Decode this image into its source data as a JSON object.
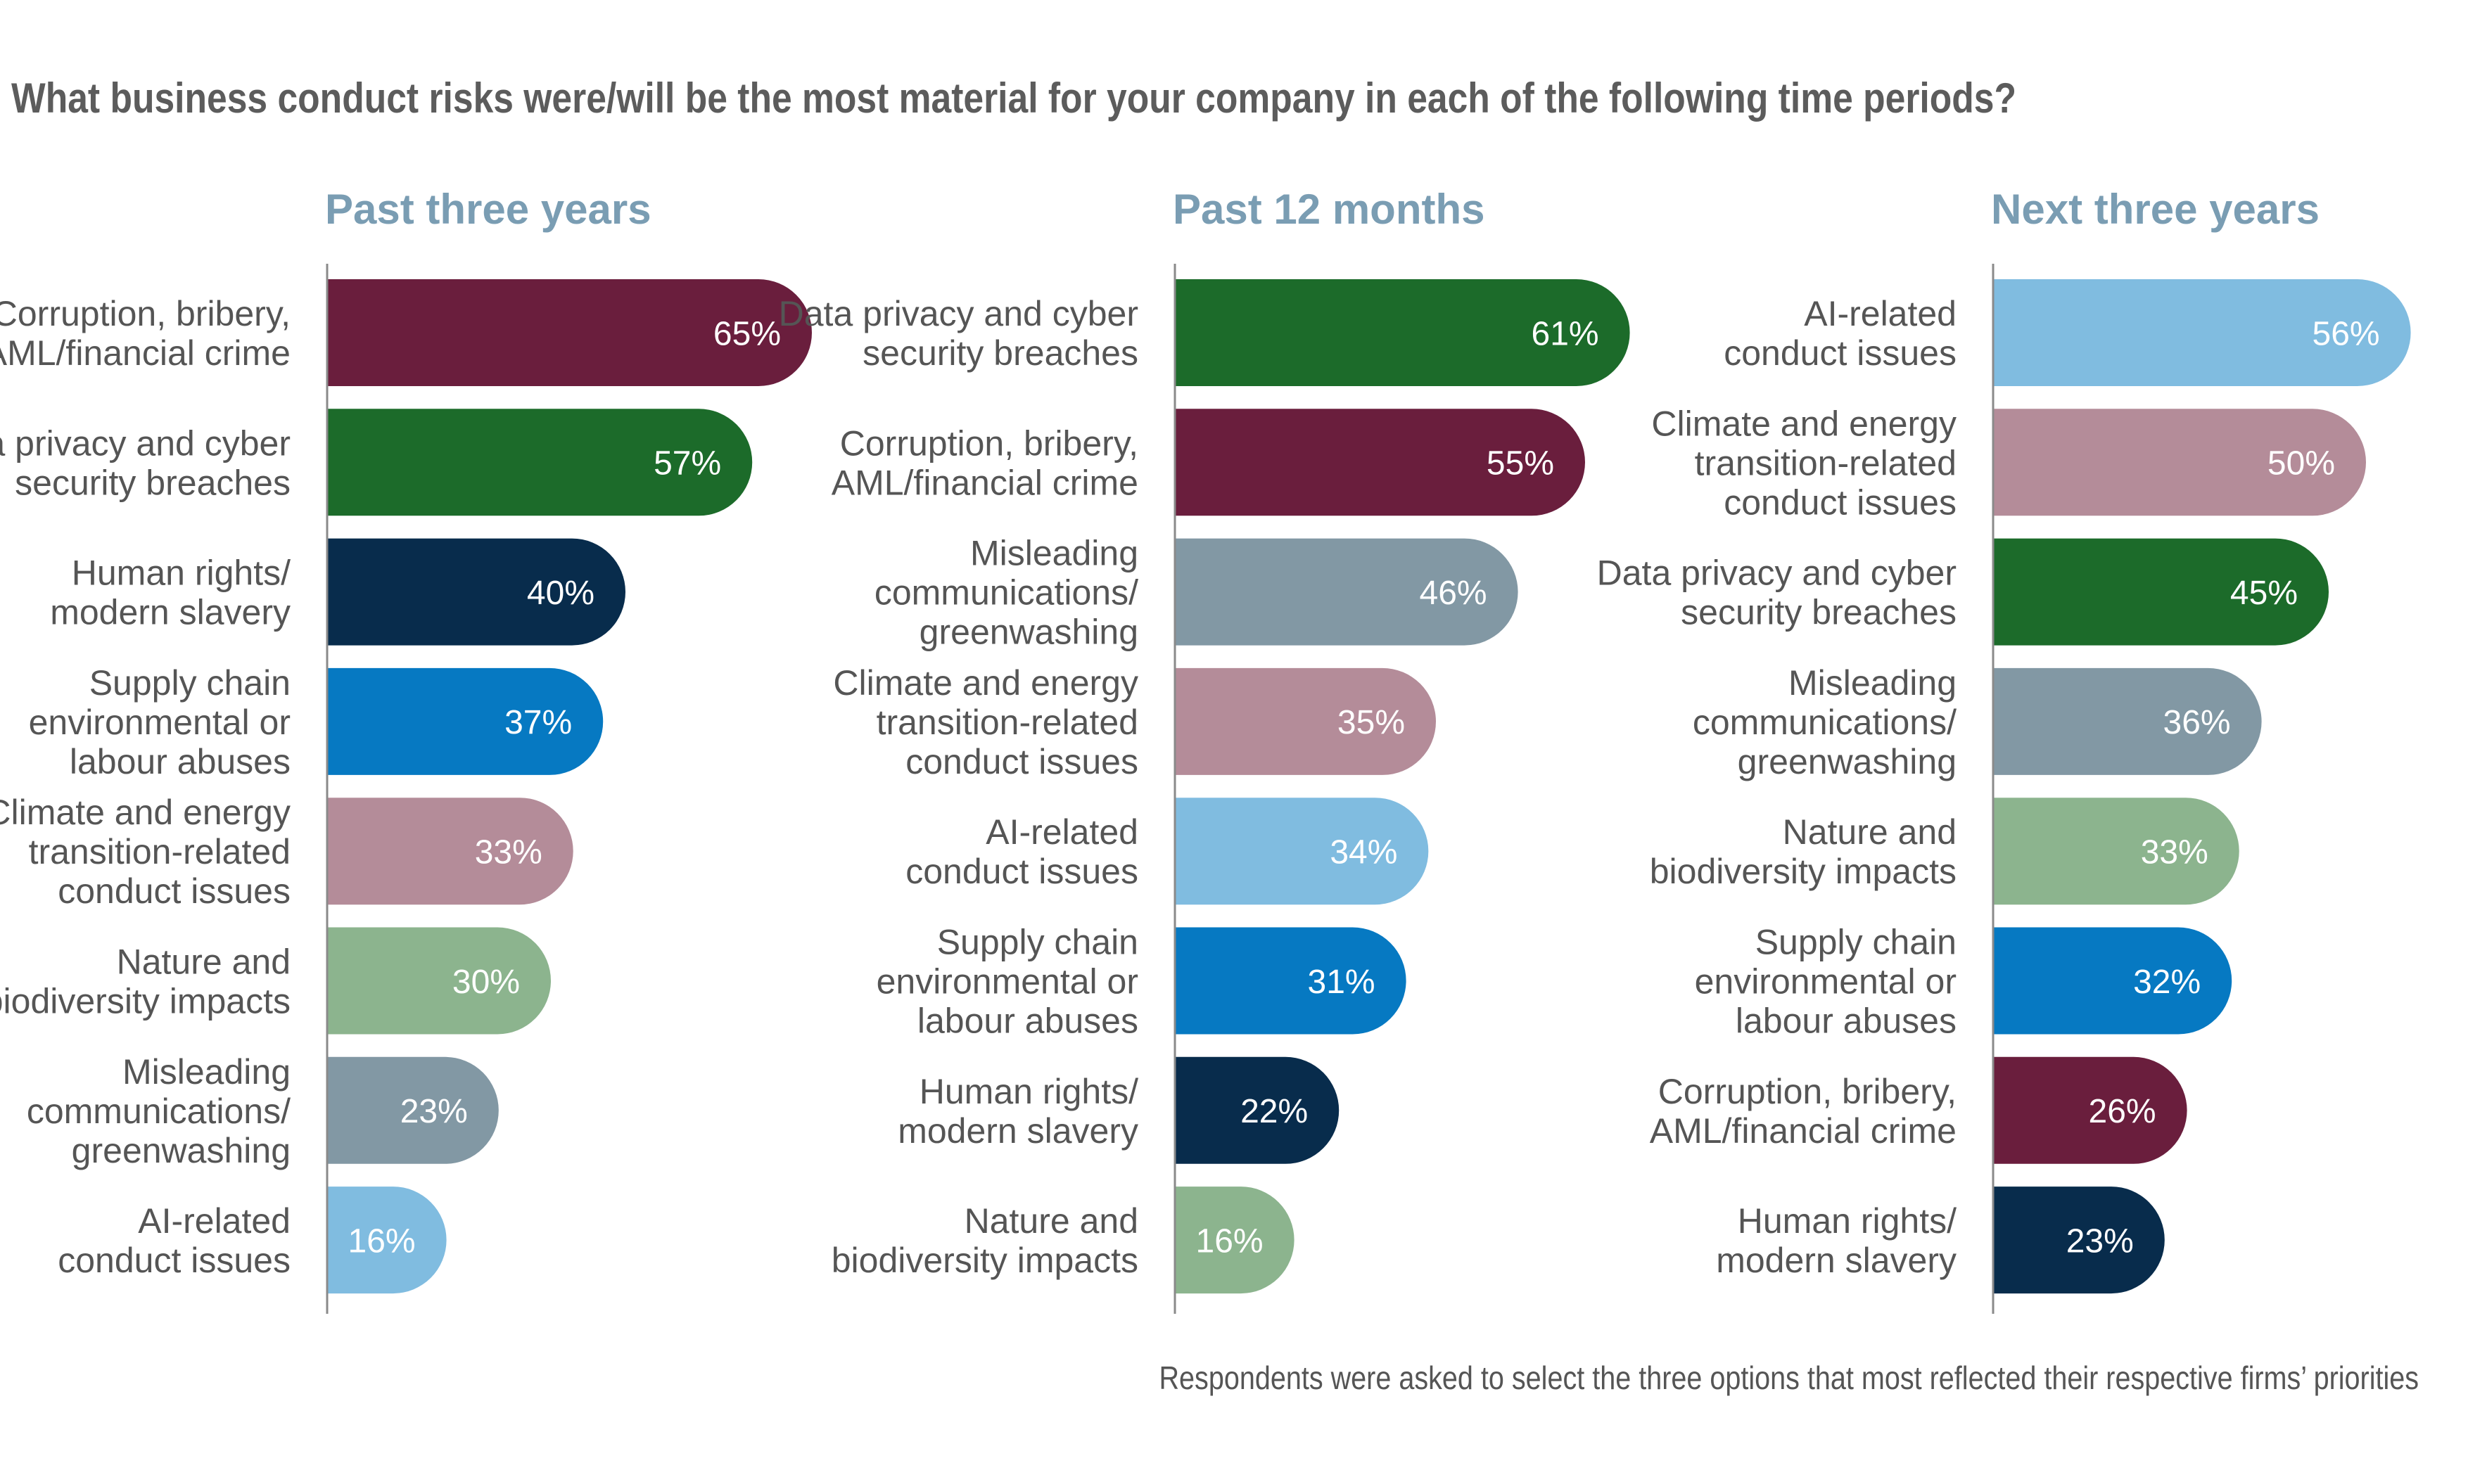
{
  "title": "What business conduct risks were/will be the most material for your company in each of the following time periods?",
  "footnote": "Respondents were asked to select the three options that most reflected their respective firms’ priorities",
  "colors": {
    "Corruption": "#6a1e3d",
    "DataPrivacy": "#1c6b2a",
    "HumanRights": "#082c4c",
    "SupplyChain": "#0679c2",
    "Climate": "#b48c99",
    "Nature": "#8cb48e",
    "Misleading": "#8298a4",
    "AI": "#80bce0"
  },
  "chart_data": [
    {
      "type": "bar",
      "orientation": "horizontal",
      "title": "Past three years",
      "xlim": [
        0,
        100
      ],
      "unit": "%",
      "bars": [
        {
          "key": "Corruption",
          "label": [
            "Corruption, bribery,",
            "AML/financial crime"
          ],
          "value": 65
        },
        {
          "key": "DataPrivacy",
          "label": [
            "Data privacy and cyber",
            "security breaches"
          ],
          "value": 57
        },
        {
          "key": "HumanRights",
          "label": [
            "Human rights/",
            "modern slavery"
          ],
          "value": 40
        },
        {
          "key": "SupplyChain",
          "label": [
            "Supply chain",
            "environmental or",
            "labour abuses"
          ],
          "value": 37
        },
        {
          "key": "Climate",
          "label": [
            "Climate and energy",
            "transition-related",
            "conduct issues"
          ],
          "value": 33
        },
        {
          "key": "Nature",
          "label": [
            "Nature and",
            "biodiversity impacts"
          ],
          "value": 30
        },
        {
          "key": "Misleading",
          "label": [
            "Misleading",
            "communications/",
            "greenwashing"
          ],
          "value": 23
        },
        {
          "key": "AI",
          "label": [
            "AI-related",
            "conduct issues"
          ],
          "value": 16
        }
      ]
    },
    {
      "type": "bar",
      "orientation": "horizontal",
      "title": "Past 12 months",
      "xlim": [
        0,
        100
      ],
      "unit": "%",
      "bars": [
        {
          "key": "DataPrivacy",
          "label": [
            "Data privacy and cyber",
            "security breaches"
          ],
          "value": 61
        },
        {
          "key": "Corruption",
          "label": [
            "Corruption, bribery,",
            "AML/financial crime"
          ],
          "value": 55
        },
        {
          "key": "Misleading",
          "label": [
            "Misleading",
            "communications/",
            "greenwashing"
          ],
          "value": 46
        },
        {
          "key": "Climate",
          "label": [
            "Climate and energy",
            "transition-related",
            "conduct issues"
          ],
          "value": 35
        },
        {
          "key": "AI",
          "label": [
            "AI-related",
            "conduct issues"
          ],
          "value": 34
        },
        {
          "key": "SupplyChain",
          "label": [
            "Supply chain",
            "environmental or",
            "labour abuses"
          ],
          "value": 31
        },
        {
          "key": "HumanRights",
          "label": [
            "Human rights/",
            "modern slavery"
          ],
          "value": 22
        },
        {
          "key": "Nature",
          "label": [
            "Nature and",
            "biodiversity impacts"
          ],
          "value": 16
        }
      ]
    },
    {
      "type": "bar",
      "orientation": "horizontal",
      "title": "Next three years",
      "xlim": [
        0,
        100
      ],
      "unit": "%",
      "bars": [
        {
          "key": "AI",
          "label": [
            "AI-related",
            "conduct issues"
          ],
          "value": 56
        },
        {
          "key": "Climate",
          "label": [
            "Climate and energy",
            "transition-related",
            "conduct issues"
          ],
          "value": 50
        },
        {
          "key": "DataPrivacy",
          "label": [
            "Data privacy and cyber",
            "security breaches"
          ],
          "value": 45
        },
        {
          "key": "Misleading",
          "label": [
            "Misleading",
            "communications/",
            "greenwashing"
          ],
          "value": 36
        },
        {
          "key": "Nature",
          "label": [
            "Nature and",
            "biodiversity impacts"
          ],
          "value": 33
        },
        {
          "key": "SupplyChain",
          "label": [
            "Supply chain",
            "environmental or",
            "labour abuses"
          ],
          "value": 32
        },
        {
          "key": "Corruption",
          "label": [
            "Corruption, bribery,",
            "AML/financial crime"
          ],
          "value": 26
        },
        {
          "key": "HumanRights",
          "label": [
            "Human rights/",
            "modern slavery"
          ],
          "value": 23
        }
      ]
    }
  ]
}
